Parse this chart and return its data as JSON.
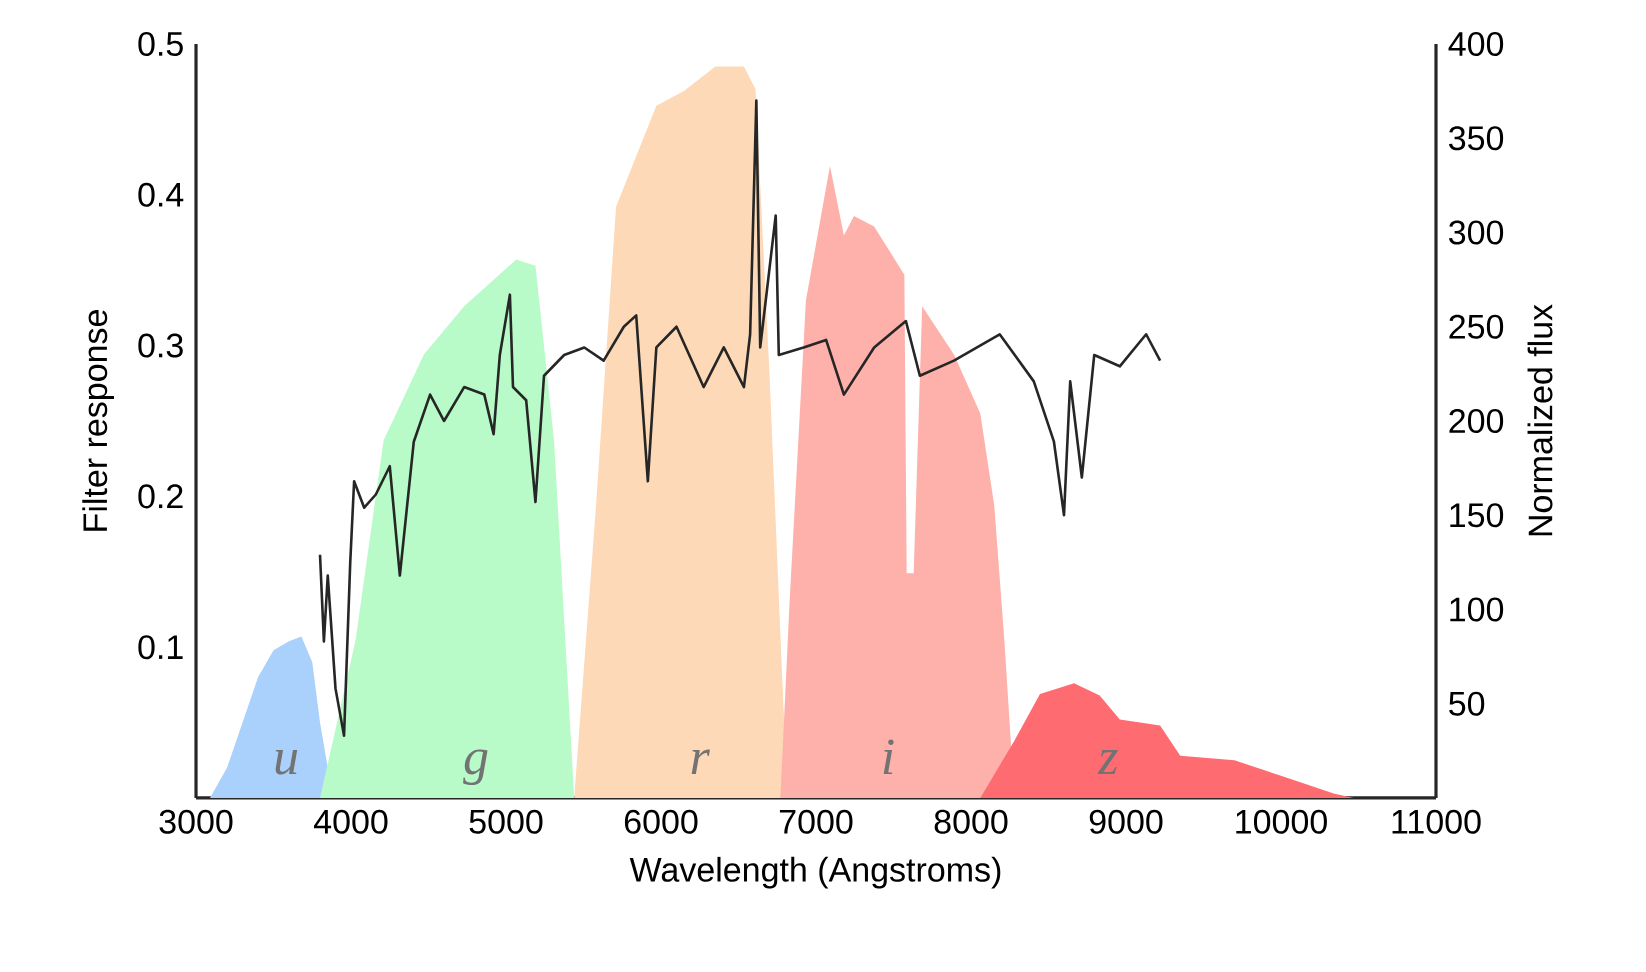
{
  "chart_data": {
    "type": "area",
    "xlabel": "Wavelength (Angstroms)",
    "ylabel": "Filter response",
    "y2label": "Normalized flux",
    "xlim": [
      3000,
      11000
    ],
    "xticks": [
      3000,
      4000,
      5000,
      6000,
      7000,
      8000,
      9000,
      10000,
      11000
    ],
    "ylim": [
      0,
      0.5
    ],
    "yticks": [
      0.1,
      0.2,
      0.3,
      0.4,
      0.5
    ],
    "y2lim": [
      0,
      400
    ],
    "y2ticks": [
      50,
      100,
      150,
      200,
      250,
      300,
      350,
      400
    ],
    "grid": false,
    "series": [
      {
        "color": "#a9d1fc",
        "x": [
          3090,
          3200,
          3300,
          3400,
          3500,
          3600,
          3680,
          3750,
          3800,
          3850,
          3900
        ],
        "values": [
          0,
          0.02,
          0.05,
          0.08,
          0.098,
          0.104,
          0.107,
          0.09,
          0.05,
          0.02,
          0
        ]
      },
      {
        "color": "#b8fbc8",
        "x": [
          3800,
          4030,
          4210,
          4470,
          4730,
          5065,
          5190,
          5310,
          5440
        ],
        "values": [
          0,
          0.105,
          0.237,
          0.294,
          0.326,
          0.357,
          0.353,
          0.237,
          0
        ]
      },
      {
        "color": "#fdd9b7",
        "x": [
          5440,
          5580,
          5710,
          5970,
          6150,
          6350,
          6535,
          6610,
          6700,
          6790,
          6830
        ],
        "values": [
          0,
          0.193,
          0.392,
          0.459,
          0.469,
          0.485,
          0.485,
          0.47,
          0.281,
          0.06,
          0
        ]
      },
      {
        "color": "#fdb1aa",
        "x": [
          6770,
          6830,
          6935,
          7090,
          7180,
          7245,
          7375,
          7570,
          7585,
          7630,
          7685,
          7890,
          8060,
          8150,
          8215,
          8280
        ],
        "values": [
          0,
          0.131,
          0.33,
          0.419,
          0.373,
          0.386,
          0.379,
          0.347,
          0.149,
          0.149,
          0.326,
          0.294,
          0.255,
          0.194,
          0.105,
          0
        ]
      },
      {
        "color": "#fe6b70",
        "x": [
          8060,
          8280,
          8445,
          8665,
          8830,
          8960,
          9220,
          9350,
          9700,
          9990,
          10340,
          10470
        ],
        "values": [
          0,
          0.038,
          0.069,
          0.076,
          0.068,
          0.052,
          0.048,
          0.028,
          0.025,
          0.015,
          0.003,
          0
        ]
      },
      {
        "type": "line",
        "axis": "y2",
        "color": "#262626",
        "x": [
          3800,
          3825,
          3850,
          3900,
          3955,
          3995,
          4020,
          4085,
          4160,
          4250,
          4315,
          4405,
          4510,
          4600,
          4730,
          4860,
          4920,
          4960,
          5025,
          5045,
          5130,
          5190,
          5245,
          5375,
          5505,
          5630,
          5760,
          5840,
          5915,
          5970,
          6100,
          6275,
          6405,
          6535,
          6575,
          6615,
          6640,
          6740,
          6760,
          6920,
          7065,
          7180,
          7375,
          7580,
          7670,
          7890,
          8185,
          8405,
          8535,
          8600,
          8640,
          8715,
          8795,
          8960,
          9130,
          9220
        ],
        "values": [
          129,
          83,
          118,
          58,
          33,
          125,
          168,
          154,
          161,
          176,
          118,
          189,
          214,
          200,
          218,
          214,
          193,
          235,
          267,
          218,
          211,
          157,
          224,
          235,
          239,
          232,
          250,
          256,
          168,
          239,
          250,
          218,
          239,
          218,
          246,
          370,
          239,
          309,
          235,
          239,
          243,
          214,
          239,
          253,
          224,
          232,
          246,
          221,
          189,
          150,
          221,
          170,
          235,
          229,
          246,
          232
        ]
      }
    ],
    "annotations": [
      "u",
      "g",
      "r",
      "i",
      "z"
    ]
  }
}
